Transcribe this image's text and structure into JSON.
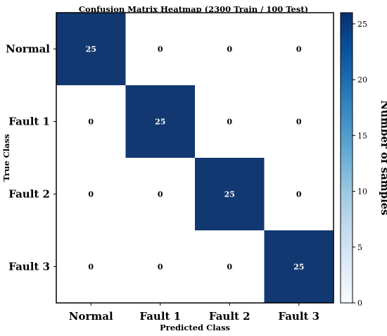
{
  "chart_data": {
    "type": "heatmap",
    "title": "Confusion Matrix Heatmap (2300 Train / 100 Test)",
    "xlabel": "Predicted Class",
    "ylabel": "True Class",
    "x_categories": [
      "Normal",
      "Fault 1",
      "Fault 2",
      "Fault 3"
    ],
    "y_categories": [
      "Normal",
      "Fault 1",
      "Fault 2",
      "Fault 3"
    ],
    "values": [
      [
        25,
        0,
        0,
        0
      ],
      [
        0,
        25,
        0,
        0
      ],
      [
        0,
        0,
        25,
        0
      ],
      [
        0,
        0,
        0,
        25
      ]
    ],
    "colorbar": {
      "label": "Number of samples",
      "range": [
        0,
        26
      ],
      "ticks": [
        0,
        5,
        10,
        15,
        20,
        25
      ],
      "colormap": "Blues",
      "low_color": "#f7fbff",
      "high_color": "#08306b"
    }
  }
}
